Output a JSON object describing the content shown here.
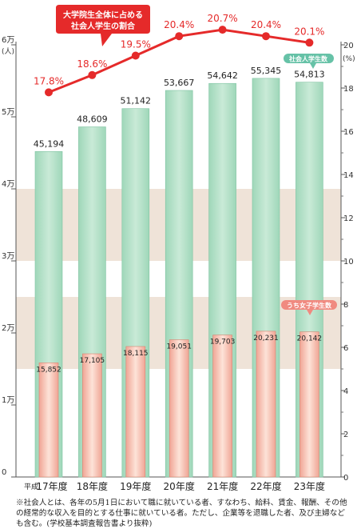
{
  "chart_data": {
    "type": "bar+line",
    "categories": [
      "17年度",
      "18年度",
      "19年度",
      "20年度",
      "21年度",
      "22年度",
      "23年度"
    ],
    "category_prefix": "平成",
    "series": [
      {
        "name": "社会人学生数",
        "type": "bar",
        "values": [
          45194,
          48609,
          51142,
          53667,
          54642,
          55345,
          54813
        ],
        "labels": [
          "45,194",
          "48,609",
          "51,142",
          "53,667",
          "54,642",
          "55,345",
          "54,813"
        ]
      },
      {
        "name": "うち女子学生数",
        "type": "bar",
        "values": [
          15852,
          17105,
          18115,
          19051,
          19703,
          20231,
          20142
        ],
        "labels": [
          "15,852",
          "17,105",
          "18,115",
          "19,051",
          "19,703",
          "20,231",
          "20,142"
        ]
      },
      {
        "name": "大学院生全体に占める社会人学生の割合",
        "type": "line",
        "axis": "right",
        "values": [
          17.8,
          18.6,
          19.5,
          20.4,
          20.7,
          20.4,
          20.1
        ],
        "labels": [
          "17.8%",
          "18.6%",
          "19.5%",
          "20.4%",
          "20.7%",
          "20.4%",
          "20.1%"
        ]
      }
    ],
    "left_axis": {
      "unit": "(人)",
      "ylim": [
        0,
        60000
      ],
      "ticks": [
        {
          "v": 0,
          "label": "0"
        },
        {
          "v": 10000,
          "label": "1万"
        },
        {
          "v": 20000,
          "label": "2万"
        },
        {
          "v": 30000,
          "label": "3万"
        },
        {
          "v": 40000,
          "label": "4万"
        },
        {
          "v": 50000,
          "label": "5万"
        },
        {
          "v": 60000,
          "label": "6万"
        }
      ]
    },
    "right_axis": {
      "unit": "(%)",
      "ylim": [
        0,
        20
      ],
      "ticks": [
        0,
        2,
        4,
        6,
        8,
        10,
        12,
        14,
        16,
        18,
        20
      ]
    },
    "callouts": {
      "ratio_line": [
        "大学院生全体に占める",
        "社会人学生の割合"
      ],
      "bar_total": "社会人学生数",
      "bar_female": "うち女子学生数"
    },
    "colors": {
      "total_bar": "#9fd7b9",
      "total_bar_top": "#c9ead7",
      "female_bar": "#f0a595",
      "female_bar_light": "#fde3d8",
      "line": "#e52a2a",
      "band": "#efe3d8",
      "callout_green": "#66c2a7",
      "callout_pink": "#f08a80"
    },
    "grid": false,
    "legend": "callouts"
  },
  "footnote": "※社会人とは、各年の5月1日において職に就いている者、すなわち、給料、賃金、報酬、その他の経常的な収入を目的とする仕事に就いている者。ただし、企業等を退職した者、及び主婦なども含む。(学校基本調査報告書より抜粋)"
}
